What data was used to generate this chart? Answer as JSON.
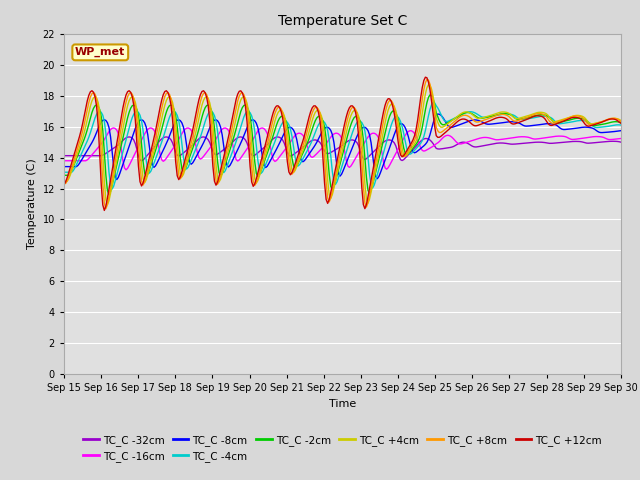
{
  "title": "Temperature Set C",
  "xlabel": "Time",
  "ylabel": "Temperature (C)",
  "ylim": [
    0,
    22
  ],
  "yticks": [
    0,
    2,
    4,
    6,
    8,
    10,
    12,
    14,
    16,
    18,
    20,
    22
  ],
  "xticklabels": [
    "Sep 15",
    "Sep 16",
    "Sep 17",
    "Sep 18",
    "Sep 19",
    "Sep 20",
    "Sep 21",
    "Sep 22",
    "Sep 23",
    "Sep 24",
    "Sep 25",
    "Sep 26",
    "Sep 27",
    "Sep 28",
    "Sep 29",
    "Sep 30"
  ],
  "wp_met_label": "WP_met",
  "series_colors": {
    "TC_C -32cm": "#9900cc",
    "TC_C -16cm": "#ff00ff",
    "TC_C -8cm": "#0000ff",
    "TC_C -4cm": "#00cccc",
    "TC_C -2cm": "#00cc00",
    "TC_C +4cm": "#cccc00",
    "TC_C +8cm": "#ff9900",
    "TC_C +12cm": "#cc0000"
  },
  "fig_facecolor": "#d8d8d8",
  "ax_facecolor": "#e0e0e0"
}
